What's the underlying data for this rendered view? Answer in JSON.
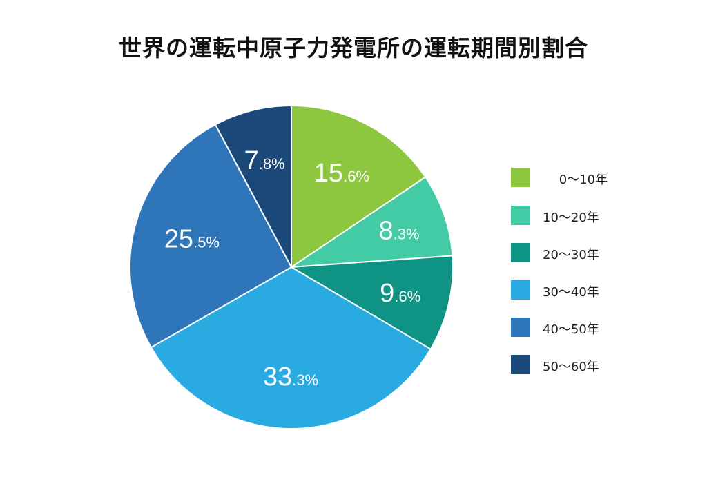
{
  "chart_data": {
    "type": "pie",
    "title": "世界の運転中原子力発電所の運転期間別割合",
    "categories": [
      "0〜10年",
      "10〜20年",
      "20〜30年",
      "30〜40年",
      "40〜50年",
      "50〜60年"
    ],
    "values": [
      15.6,
      8.3,
      9.6,
      33.3,
      25.5,
      7.8
    ],
    "value_labels": [
      {
        "main": "15",
        "fraction": ".6%"
      },
      {
        "main": "8",
        "fraction": ".3%"
      },
      {
        "main": "9",
        "fraction": ".6%"
      },
      {
        "main": "33",
        "fraction": ".3%"
      },
      {
        "main": "25",
        "fraction": ".5%"
      },
      {
        "main": "7",
        "fraction": ".8%"
      }
    ],
    "colors": [
      "#8dc63f",
      "#43cba6",
      "#0e9385",
      "#29abe2",
      "#2f75b9",
      "#1b4a7a"
    ],
    "start_angle_deg": 0,
    "direction": "clockwise",
    "legend_placement": "right"
  },
  "legend": {
    "items": [
      {
        "label": "　 0〜10年",
        "color": "#8dc63f"
      },
      {
        "label": "10〜20年",
        "color": "#43cba6"
      },
      {
        "label": "20〜30年",
        "color": "#0e9385"
      },
      {
        "label": "30〜40年",
        "color": "#29abe2"
      },
      {
        "label": "40〜50年",
        "color": "#2f75b9"
      },
      {
        "label": "50〜60年",
        "color": "#1b4a7a"
      }
    ]
  }
}
